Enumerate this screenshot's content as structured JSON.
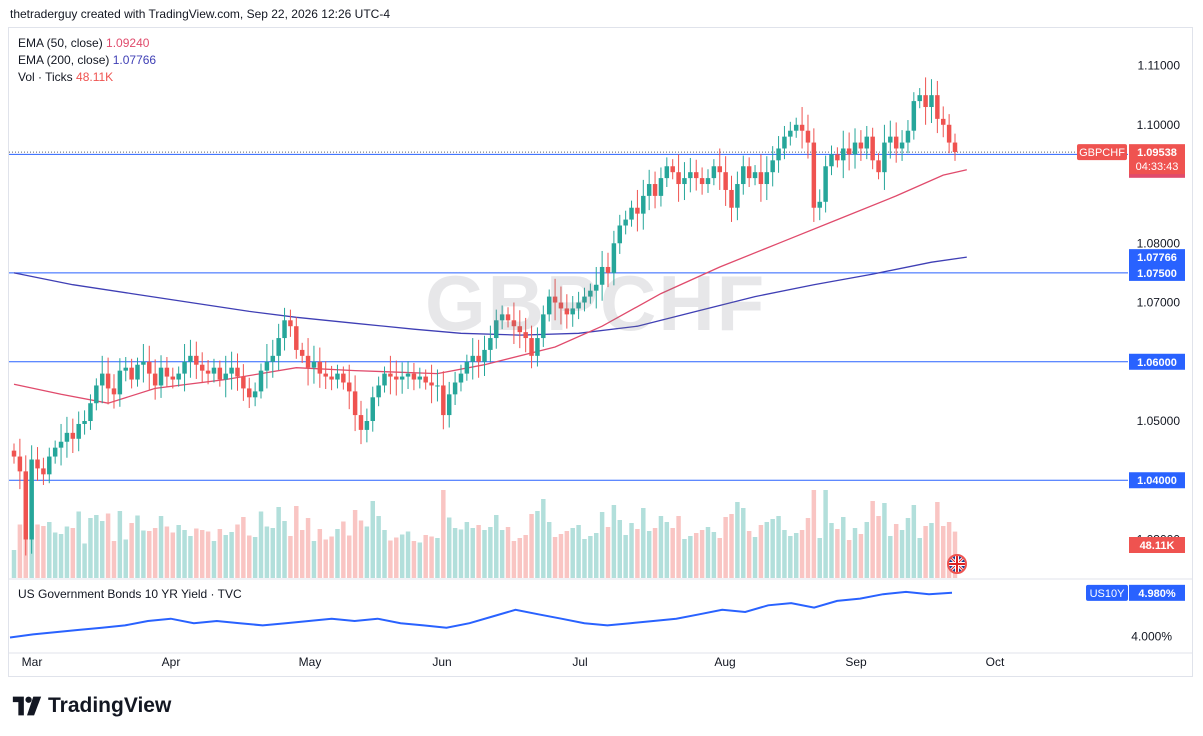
{
  "header": {
    "text": "thetraderguy created with TradingView.com, Sep 22, 2026 12:26 UTC-4"
  },
  "watermark": "GBPCHF",
  "legend": {
    "ema50_label": "EMA (50, close)",
    "ema50_value": "1.09240",
    "ema200_label": "EMA (200, close)",
    "ema200_value": "1.07766",
    "vol_label": "Vol · Ticks",
    "vol_value": "48.11K"
  },
  "pane2": {
    "title": "US Government Bonds 10 YR Yield · TVC"
  },
  "footer": {
    "brand": "TradingView"
  },
  "icons": {
    "logo": "tradingview-logo-icon",
    "flag": "uk-flag-icon"
  },
  "colors": {
    "up": "#26a69a",
    "down": "#ef5350",
    "ema50": "#e04b6c",
    "ema200": "#3f3fb5",
    "hline": "#2962ff",
    "yield": "#2962ff",
    "vol_up": "#b2dfdb",
    "vol_down": "#f9c5c3"
  },
  "chart_data": [
    {
      "type": "candlestick",
      "symbol": "GBPCHF",
      "price_axis": {
        "ticks": [
          "1.11000",
          "1.10000",
          "1.08000",
          "1.07000",
          "1.05000",
          "1.03000"
        ],
        "range": [
          1.0235,
          1.116
        ]
      },
      "x_axis": {
        "ticks": [
          "Mar",
          "Apr",
          "May",
          "Jun",
          "Jul",
          "Aug",
          "Sep",
          "Oct"
        ]
      },
      "horizontal_lines": [
        {
          "price": 1.095,
          "label": "1.09500"
        },
        {
          "price": 1.075,
          "label": "1.07500"
        },
        {
          "price": 1.06,
          "label": "1.06000"
        },
        {
          "price": 1.04,
          "label": "1.04000"
        }
      ],
      "last_price": {
        "symbol": "GBPCHF",
        "price": 1.09538,
        "label": "1.09538",
        "countdown": "04:33:43"
      },
      "ema50": {
        "label": "1.09240",
        "value": 1.0924
      },
      "ema200": {
        "label": "1.07766",
        "value": 1.07766
      },
      "volume_label": "48.11K",
      "closes": [
        1.044,
        1.0415,
        1.03,
        1.0435,
        1.042,
        1.041,
        1.044,
        1.0455,
        1.0465,
        1.048,
        1.047,
        1.0495,
        1.05,
        1.053,
        1.056,
        1.058,
        1.0555,
        1.0545,
        1.0585,
        1.059,
        1.057,
        1.0595,
        1.06,
        1.058,
        1.056,
        1.059,
        1.0575,
        1.057,
        1.058,
        1.06,
        1.061,
        1.0595,
        1.0585,
        1.058,
        1.059,
        1.057,
        1.058,
        1.059,
        1.0575,
        1.0555,
        1.054,
        1.055,
        1.0585,
        1.06,
        1.061,
        1.064,
        1.067,
        1.066,
        1.062,
        1.061,
        1.059,
        1.06,
        1.058,
        1.0575,
        1.057,
        1.058,
        1.0565,
        1.055,
        1.051,
        1.0485,
        1.05,
        1.054,
        1.056,
        1.058,
        1.0575,
        1.057,
        1.0575,
        1.058,
        1.057,
        1.0575,
        1.0565,
        1.056,
        1.056,
        1.051,
        1.0545,
        1.0565,
        1.058,
        1.06,
        1.061,
        1.06,
        1.062,
        1.064,
        1.067,
        1.068,
        1.067,
        1.066,
        1.065,
        1.064,
        1.061,
        1.064,
        1.068,
        1.071,
        1.07,
        1.069,
        1.068,
        1.069,
        1.07,
        1.071,
        1.072,
        1.073,
        1.076,
        1.075,
        1.08,
        1.083,
        1.084,
        1.086,
        1.085,
        1.088,
        1.09,
        1.088,
        1.091,
        1.093,
        1.092,
        1.09,
        1.091,
        1.092,
        1.091,
        1.09,
        1.091,
        1.093,
        1.092,
        1.089,
        1.086,
        1.09,
        1.093,
        1.091,
        1.092,
        1.09,
        1.092,
        1.094,
        1.096,
        1.098,
        1.099,
        1.1,
        1.099,
        1.097,
        1.086,
        1.087,
        1.093,
        1.095,
        1.094,
        1.096,
        1.095,
        1.097,
        1.096,
        1.098,
        1.094,
        1.092,
        1.097,
        1.098,
        1.096,
        1.097,
        1.099,
        1.104,
        1.105,
        1.103,
        1.105,
        1.101,
        1.1,
        1.097,
        1.0954
      ],
      "ema50_line": [
        [
          0,
          1.0562
        ],
        [
          8,
          1.0545
        ],
        [
          16,
          1.053
        ],
        [
          24,
          1.0555
        ],
        [
          36,
          1.057
        ],
        [
          48,
          1.059
        ],
        [
          58,
          1.0585
        ],
        [
          72,
          1.058
        ],
        [
          80,
          1.0595
        ],
        [
          92,
          1.0625
        ],
        [
          100,
          1.066
        ],
        [
          110,
          1.0715
        ],
        [
          120,
          1.076
        ],
        [
          130,
          1.08
        ],
        [
          140,
          1.084
        ],
        [
          150,
          1.088
        ],
        [
          158,
          1.0915
        ],
        [
          162,
          1.0924
        ]
      ],
      "ema200_line": [
        [
          0,
          1.075
        ],
        [
          10,
          1.073
        ],
        [
          20,
          1.0715
        ],
        [
          30,
          1.07
        ],
        [
          40,
          1.0685
        ],
        [
          48,
          1.0675
        ],
        [
          58,
          1.0665
        ],
        [
          68,
          1.0655
        ],
        [
          76,
          1.0648
        ],
        [
          86,
          1.0645
        ],
        [
          96,
          1.0648
        ],
        [
          106,
          1.066
        ],
        [
          116,
          1.0685
        ],
        [
          126,
          1.071
        ],
        [
          136,
          1.073
        ],
        [
          146,
          1.0748
        ],
        [
          156,
          1.0768
        ],
        [
          162,
          1.07766
        ]
      ]
    },
    {
      "type": "line",
      "name": "US10Y",
      "last_value": "4.980%",
      "axis_tick": "4.000%",
      "values": [
        3.98,
        4.05,
        4.1,
        4.15,
        4.2,
        4.25,
        4.35,
        4.4,
        4.3,
        4.35,
        4.3,
        4.25,
        4.3,
        4.35,
        4.4,
        4.35,
        4.4,
        4.3,
        4.25,
        4.2,
        4.3,
        4.45,
        4.6,
        4.5,
        4.4,
        4.3,
        4.25,
        4.3,
        4.35,
        4.4,
        4.5,
        4.6,
        4.55,
        4.7,
        4.75,
        4.65,
        4.8,
        4.85,
        4.95,
        5.0,
        4.95,
        4.98
      ]
    }
  ]
}
